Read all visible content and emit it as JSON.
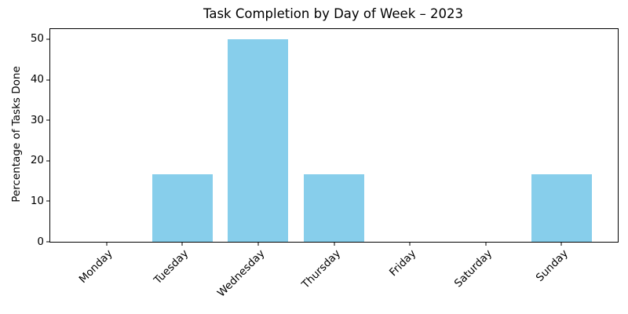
{
  "figure": {
    "background": "#ffffff"
  },
  "chart_data": {
    "type": "bar",
    "title": "Task Completion by Day of Week – 2023",
    "xlabel": "",
    "ylabel": "Percentage of Tasks Done",
    "categories": [
      "Monday",
      "Tuesday",
      "Wednesday",
      "Thursday",
      "Friday",
      "Saturday",
      "Sunday"
    ],
    "values": [
      0,
      16.67,
      50,
      16.67,
      0,
      0,
      16.67
    ],
    "yticks": [
      0,
      10,
      20,
      30,
      40,
      50
    ],
    "ylim": [
      0,
      52.5
    ],
    "xlim": [
      -0.74,
      6.74
    ],
    "bar_width": 0.8,
    "bar_color": "#87CEEB",
    "axis_color": "#000000",
    "grid": false,
    "legend": "none",
    "x_tick_label_rotation": 45
  }
}
